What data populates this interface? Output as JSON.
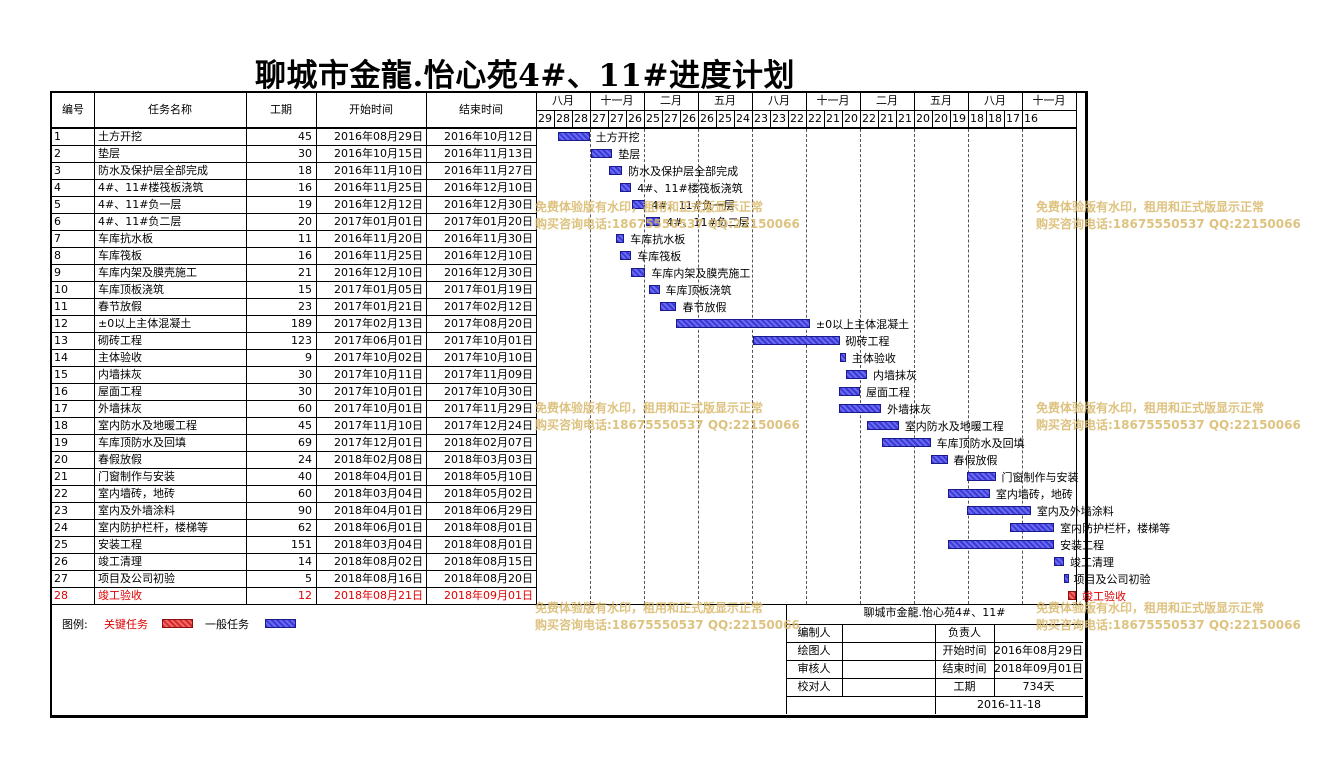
{
  "title": "聊城市金龍.怡心苑4#、11#进度计划",
  "headers": {
    "no": "编号",
    "name": "任务名称",
    "duration": "工期",
    "start": "开始时间",
    "end": "结束时间"
  },
  "timeline": {
    "months": [
      "八月",
      "十一月",
      "二月",
      "五月",
      "八月",
      "十一月",
      "二月",
      "五月",
      "八月",
      "十一月"
    ],
    "days": [
      "29",
      "28",
      "28",
      "27",
      "27",
      "26",
      "25",
      "27",
      "26",
      "26",
      "25",
      "24",
      "23",
      "23",
      "22",
      "22",
      "21",
      "20",
      "22",
      "21",
      "21",
      "20",
      "20",
      "19",
      "18",
      "18",
      "17",
      "16"
    ]
  },
  "tasks": [
    {
      "no": "1",
      "name": "土方开挖",
      "duration": "45",
      "start": "2016年08月29日",
      "end": "2016年10月12日",
      "critical": false,
      "start_date": "2016-08-29",
      "end_date": "2016-10-12"
    },
    {
      "no": "2",
      "name": "垫层",
      "duration": "30",
      "start": "2016年10月15日",
      "end": "2016年11月13日",
      "critical": false,
      "start_date": "2016-10-15",
      "end_date": "2016-11-13"
    },
    {
      "no": "3",
      "name": "防水及保护层全部完成",
      "duration": "18",
      "start": "2016年11月10日",
      "end": "2016年11月27日",
      "critical": false,
      "start_date": "2016-11-10",
      "end_date": "2016-11-27"
    },
    {
      "no": "4",
      "name": "4#、11#楼筏板浇筑",
      "duration": "16",
      "start": "2016年11月25日",
      "end": "2016年12月10日",
      "critical": false,
      "start_date": "2016-11-25",
      "end_date": "2016-12-10"
    },
    {
      "no": "5",
      "name": "4#、11#负一层",
      "duration": "19",
      "start": "2016年12月12日",
      "end": "2016年12月30日",
      "critical": false,
      "start_date": "2016-12-12",
      "end_date": "2016-12-30"
    },
    {
      "no": "6",
      "name": "4#、11#负二层",
      "duration": "20",
      "start": "2017年01月01日",
      "end": "2017年01月20日",
      "critical": false,
      "start_date": "2017-01-01",
      "end_date": "2017-01-20"
    },
    {
      "no": "7",
      "name": "车库抗水板",
      "duration": "11",
      "start": "2016年11月20日",
      "end": "2016年11月30日",
      "critical": false,
      "start_date": "2016-11-20",
      "end_date": "2016-11-30"
    },
    {
      "no": "8",
      "name": "车库筏板",
      "duration": "16",
      "start": "2016年11月25日",
      "end": "2016年12月10日",
      "critical": false,
      "start_date": "2016-11-25",
      "end_date": "2016-12-10"
    },
    {
      "no": "9",
      "name": "车库内架及膜壳施工",
      "duration": "21",
      "start": "2016年12月10日",
      "end": "2016年12月30日",
      "critical": false,
      "start_date": "2016-12-10",
      "end_date": "2016-12-30"
    },
    {
      "no": "10",
      "name": "车库顶板浇筑",
      "duration": "15",
      "start": "2017年01月05日",
      "end": "2017年01月19日",
      "critical": false,
      "start_date": "2017-01-05",
      "end_date": "2017-01-19"
    },
    {
      "no": "11",
      "name": "春节放假",
      "duration": "23",
      "start": "2017年01月21日",
      "end": "2017年02月12日",
      "critical": false,
      "start_date": "2017-01-21",
      "end_date": "2017-02-12"
    },
    {
      "no": "12",
      "name": "±0以上主体混凝土",
      "duration": "189",
      "start": "2017年02月13日",
      "end": "2017年08月20日",
      "critical": false,
      "start_date": "2017-02-13",
      "end_date": "2017-08-20"
    },
    {
      "no": "13",
      "name": "砌砖工程",
      "duration": "123",
      "start": "2017年06月01日",
      "end": "2017年10月01日",
      "critical": false,
      "start_date": "2017-06-01",
      "end_date": "2017-10-01"
    },
    {
      "no": "14",
      "name": "主体验收",
      "duration": "9",
      "start": "2017年10月02日",
      "end": "2017年10月10日",
      "critical": false,
      "start_date": "2017-10-02",
      "end_date": "2017-10-10"
    },
    {
      "no": "15",
      "name": "内墙抹灰",
      "duration": "30",
      "start": "2017年10月11日",
      "end": "2017年11月09日",
      "critical": false,
      "start_date": "2017-10-11",
      "end_date": "2017-11-09"
    },
    {
      "no": "16",
      "name": "屋面工程",
      "duration": "30",
      "start": "2017年10月01日",
      "end": "2017年10月30日",
      "critical": false,
      "start_date": "2017-10-01",
      "end_date": "2017-10-30"
    },
    {
      "no": "17",
      "name": "外墙抹灰",
      "duration": "60",
      "start": "2017年10月01日",
      "end": "2017年11月29日",
      "critical": false,
      "start_date": "2017-10-01",
      "end_date": "2017-11-29"
    },
    {
      "no": "18",
      "name": "室内防水及地暖工程",
      "duration": "45",
      "start": "2017年11月10日",
      "end": "2017年12月24日",
      "critical": false,
      "start_date": "2017-11-10",
      "end_date": "2017-12-24"
    },
    {
      "no": "19",
      "name": "车库顶防水及回填",
      "duration": "69",
      "start": "2017年12月01日",
      "end": "2018年02月07日",
      "critical": false,
      "start_date": "2017-12-01",
      "end_date": "2018-02-07"
    },
    {
      "no": "20",
      "name": "春假放假",
      "duration": "24",
      "start": "2018年02月08日",
      "end": "2018年03月03日",
      "critical": false,
      "start_date": "2018-02-08",
      "end_date": "2018-03-03"
    },
    {
      "no": "21",
      "name": "门窗制作与安装",
      "duration": "40",
      "start": "2018年04月01日",
      "end": "2018年05月10日",
      "critical": false,
      "start_date": "2018-04-01",
      "end_date": "2018-05-10"
    },
    {
      "no": "22",
      "name": "室内墙砖，地砖",
      "duration": "60",
      "start": "2018年03月04日",
      "end": "2018年05月02日",
      "critical": false,
      "start_date": "2018-03-04",
      "end_date": "2018-05-02"
    },
    {
      "no": "23",
      "name": "室内及外墙涂料",
      "duration": "90",
      "start": "2018年04月01日",
      "end": "2018年06月29日",
      "critical": false,
      "start_date": "2018-04-01",
      "end_date": "2018-06-29"
    },
    {
      "no": "24",
      "name": "室内防护栏杆，楼梯等",
      "duration": "62",
      "start": "2018年06月01日",
      "end": "2018年08月01日",
      "critical": false,
      "start_date": "2018-06-01",
      "end_date": "2018-08-01"
    },
    {
      "no": "25",
      "name": "安装工程",
      "duration": "151",
      "start": "2018年03月04日",
      "end": "2018年08月01日",
      "critical": false,
      "start_date": "2018-03-04",
      "end_date": "2018-08-01"
    },
    {
      "no": "26",
      "name": "竣工清理",
      "duration": "14",
      "start": "2018年08月02日",
      "end": "2018年08月15日",
      "critical": false,
      "start_date": "2018-08-02",
      "end_date": "2018-08-15"
    },
    {
      "no": "27",
      "name": "项目及公司初验",
      "duration": "5",
      "start": "2018年08月16日",
      "end": "2018年08月20日",
      "critical": false,
      "start_date": "2018-08-16",
      "end_date": "2018-08-20"
    },
    {
      "no": "28",
      "name": "竣工验收",
      "duration": "12",
      "start": "2018年08月21日",
      "end": "2018年09月01日",
      "critical": true,
      "start_date": "2018-08-21",
      "end_date": "2018-09-01"
    }
  ],
  "legend": {
    "label": "图例:",
    "critical": "关键任务",
    "normal": "一般任务"
  },
  "info": {
    "project": "聊城市金龍.怡心苑4#、11#",
    "editor_label": "编制人",
    "editor": "",
    "drawer_label": "绘图人",
    "drawer": "",
    "reviewer_label": "审核人",
    "reviewer": "",
    "checker_label": "校对人",
    "checker": "",
    "owner_label": "负责人",
    "owner": "",
    "start_label": "开始时间",
    "start": "2016年08月29日",
    "end_label": "结束时间",
    "end": "2018年09月01日",
    "duration_label": "工期",
    "duration": "734天",
    "date": "2016-11-18"
  },
  "watermark": {
    "line1": "免费体验版有水印，租用和正式版显示正常",
    "line2": "购买咨询电话:18675550537 QQ:22150066"
  },
  "colors": {
    "critical": "#d62a2a",
    "normal": "#3a3ad6",
    "critical_text": "#e00000",
    "watermark": "#d9b86a"
  }
}
